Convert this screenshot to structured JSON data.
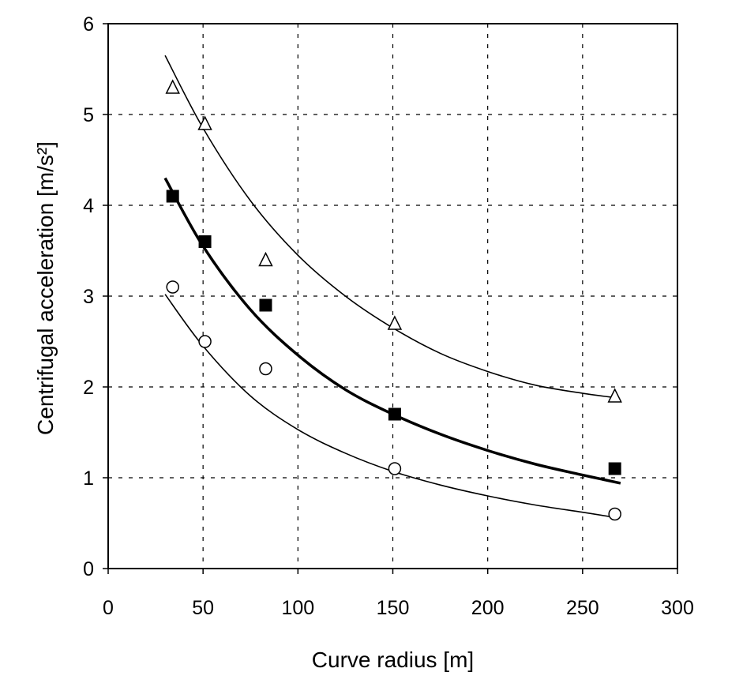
{
  "chart_data": {
    "type": "scatter",
    "title": "",
    "xlabel": "Curve radius [m]",
    "ylabel": "Centrifugal acceleration [m/s²]",
    "xlim": [
      0,
      300
    ],
    "ylim": [
      0,
      6
    ],
    "xticks": [
      0,
      50,
      100,
      150,
      200,
      250,
      300
    ],
    "yticks": [
      0,
      1,
      2,
      3,
      4,
      5,
      6
    ],
    "grid": "dashed",
    "legend": "none",
    "series": [
      {
        "marker": "open-triangle",
        "x": [
          34,
          51,
          83,
          151,
          267
        ],
        "y": [
          5.3,
          4.9,
          3.4,
          2.7,
          1.9
        ],
        "fit": {
          "x": [
            30,
            50,
            75,
            100,
            125,
            150,
            175,
            200,
            225,
            250,
            268
          ],
          "y": [
            5.65,
            4.85,
            4.05,
            3.45,
            3.0,
            2.65,
            2.37,
            2.17,
            2.02,
            1.93,
            1.88
          ],
          "weight": "thin"
        }
      },
      {
        "marker": "filled-square",
        "x": [
          34,
          51,
          83,
          151,
          267
        ],
        "y": [
          4.1,
          3.6,
          2.9,
          1.7,
          1.1
        ],
        "fit": {
          "x": [
            30,
            50,
            75,
            100,
            125,
            150,
            175,
            200,
            225,
            250,
            270
          ],
          "y": [
            4.3,
            3.55,
            2.85,
            2.35,
            1.97,
            1.7,
            1.48,
            1.3,
            1.15,
            1.03,
            0.94
          ],
          "weight": "bold"
        }
      },
      {
        "marker": "open-circle",
        "x": [
          34,
          51,
          83,
          151,
          267
        ],
        "y": [
          3.1,
          2.5,
          2.2,
          1.1,
          0.6
        ],
        "fit": {
          "x": [
            30,
            50,
            75,
            100,
            125,
            150,
            175,
            200,
            225,
            250,
            268
          ],
          "y": [
            3.02,
            2.45,
            1.9,
            1.53,
            1.27,
            1.07,
            0.92,
            0.8,
            0.7,
            0.62,
            0.56
          ],
          "weight": "thin"
        }
      }
    ]
  }
}
